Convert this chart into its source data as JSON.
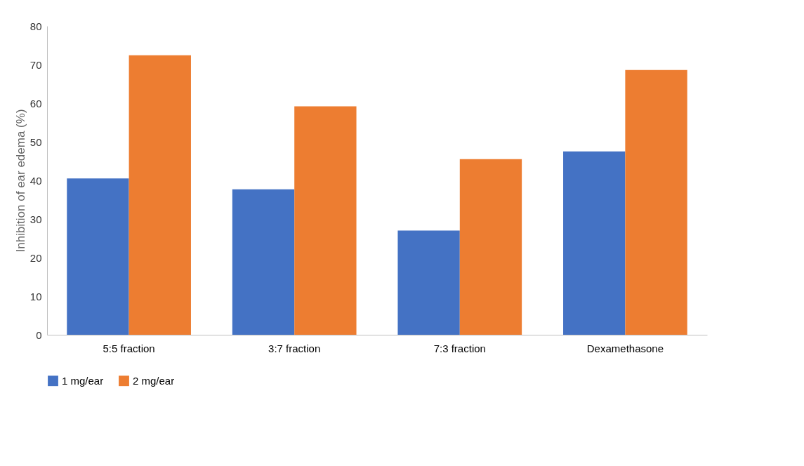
{
  "chart_data": {
    "type": "bar",
    "ylabel": "Inhibition of ear edema (%)",
    "categories": [
      "5:5 fraction",
      "3:7 fraction",
      "7:3 fraction",
      "Dexamethasone"
    ],
    "series": [
      {
        "name": "1 mg/ear",
        "color": "#4472c4",
        "values": [
          40.5,
          37.7,
          27,
          47.5
        ]
      },
      {
        "name": "2 mg/ear",
        "color": "#ed7d31",
        "values": [
          72.4,
          59.2,
          45.5,
          68.6
        ]
      }
    ],
    "ylim": [
      0,
      80
    ],
    "yticks": [
      0,
      10,
      20,
      30,
      40,
      50,
      60,
      70,
      80
    ],
    "grid": false,
    "legend": "bottom"
  }
}
